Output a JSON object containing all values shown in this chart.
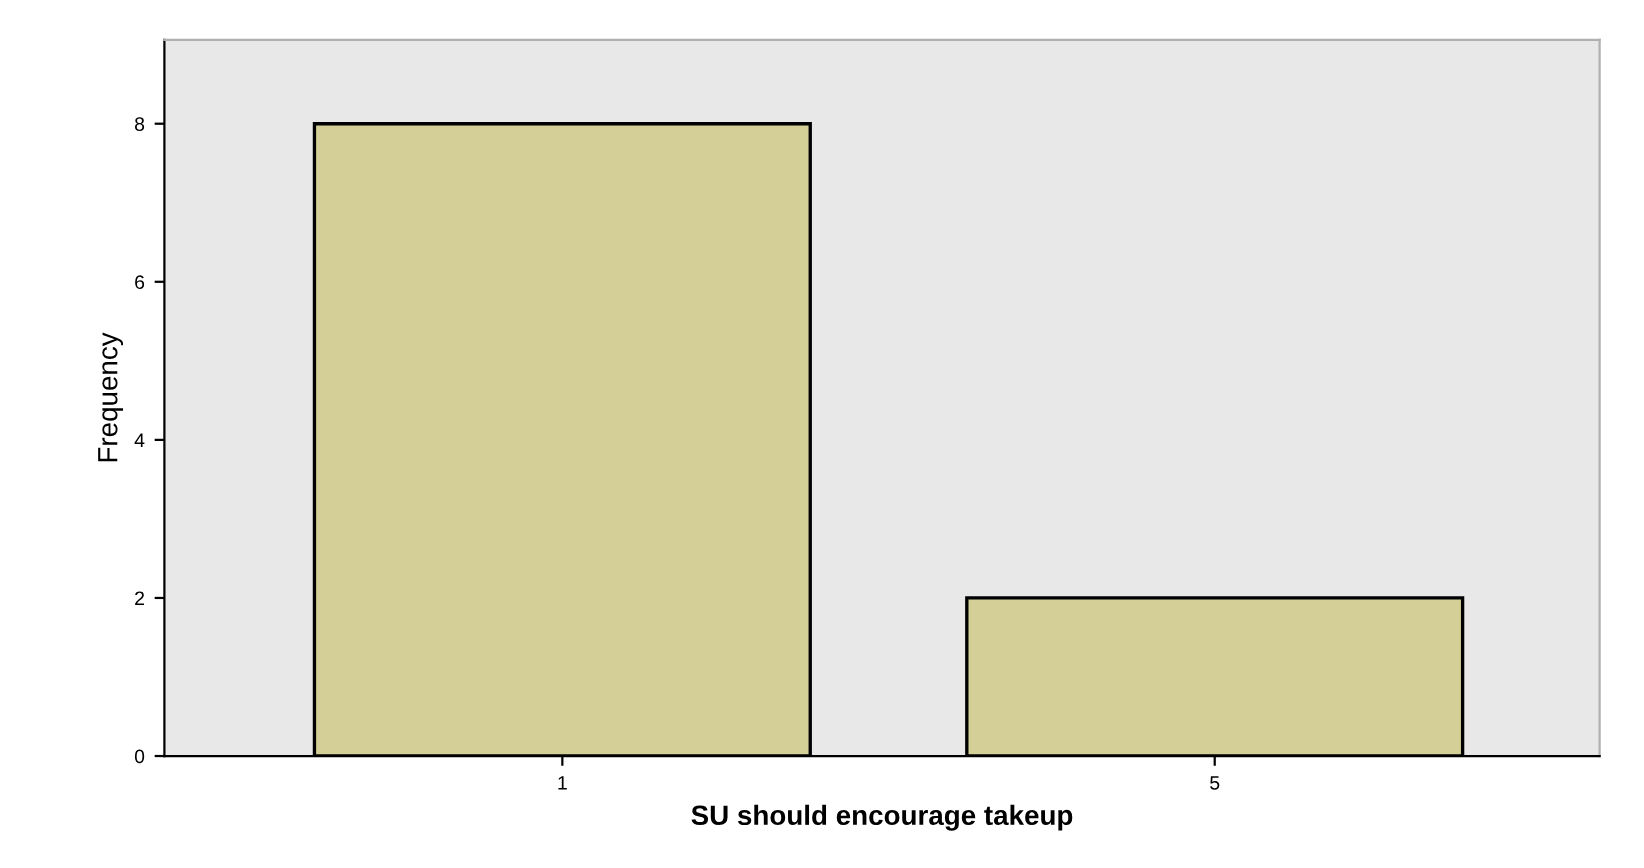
{
  "chart_data": {
    "type": "bar",
    "xlabel": "SU should encourage takeup",
    "ylabel": "Frequency",
    "categories": [
      "1",
      "5"
    ],
    "values": [
      8,
      2
    ],
    "color": "#d3cf96",
    "ylim": [
      0,
      9.06
    ],
    "yticks": [
      0,
      2,
      4,
      6,
      8
    ],
    "grid": false
  }
}
